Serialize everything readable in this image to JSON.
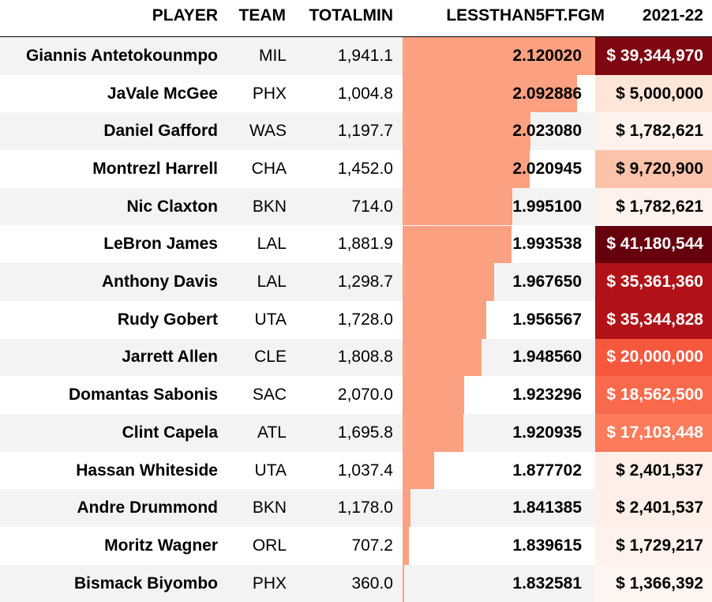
{
  "headers": {
    "player": "PLAYER",
    "team": "TEAM",
    "totalmin": "TOTALMIN",
    "fgm": "LESSTHAN5FT.FGM",
    "salary": "2021-22"
  },
  "chart_data": {
    "type": "table",
    "columns": [
      "PLAYER",
      "TEAM",
      "TOTALMIN",
      "LESSTHAN5FT.FGM",
      "2021-22"
    ],
    "bar_column": "LESSTHAN5FT.FGM",
    "bar_color": "#fca082",
    "salary_colormap": "Reds",
    "rows": [
      {
        "player": "Giannis Antetokounmpo",
        "team": "MIL",
        "totalmin": "1,941.1",
        "fgm": "2.120020",
        "salary": "$ 39,344,970",
        "salary_bg": "#7f0712",
        "salary_fg": "#ffffff"
      },
      {
        "player": "JaVale McGee",
        "team": "PHX",
        "totalmin": "1,004.8",
        "fgm": "2.092886",
        "salary": "$ 5,000,000",
        "salary_bg": "#fee5d9",
        "salary_fg": "#000000"
      },
      {
        "player": "Daniel Gafford",
        "team": "WAS",
        "totalmin": "1,197.7",
        "fgm": "2.023080",
        "salary": "$ 1,782,621",
        "salary_bg": "#fff2ec",
        "salary_fg": "#000000"
      },
      {
        "player": "Montrezl Harrell",
        "team": "CHA",
        "totalmin": "1,452.0",
        "fgm": "2.020945",
        "salary": "$ 9,720,900",
        "salary_bg": "#fcc3ab",
        "salary_fg": "#000000"
      },
      {
        "player": "Nic Claxton",
        "team": "BKN",
        "totalmin": "714.0",
        "fgm": "1.995100",
        "salary": "$ 1,782,621",
        "salary_bg": "#fff2ec",
        "salary_fg": "#000000"
      },
      {
        "player": "LeBron James",
        "team": "LAL",
        "totalmin": "1,881.9",
        "fgm": "1.993538",
        "salary": "$ 41,180,544",
        "salary_bg": "#67000d",
        "salary_fg": "#ffffff"
      },
      {
        "player": "Anthony Davis",
        "team": "LAL",
        "totalmin": "1,298.7",
        "fgm": "1.967650",
        "salary": "$ 35,361,360",
        "salary_bg": "#b01218",
        "salary_fg": "#ffffff"
      },
      {
        "player": "Rudy Gobert",
        "team": "UTA",
        "totalmin": "1,728.0",
        "fgm": "1.956567",
        "salary": "$ 35,344,828",
        "salary_bg": "#b01218",
        "salary_fg": "#ffffff"
      },
      {
        "player": "Jarrett Allen",
        "team": "CLE",
        "totalmin": "1,808.8",
        "fgm": "1.948560",
        "salary": "$ 20,000,000",
        "salary_bg": "#f6583e",
        "salary_fg": "#ffffff"
      },
      {
        "player": "Domantas Sabonis",
        "team": "SAC",
        "totalmin": "2,070.0",
        "fgm": "1.923296",
        "salary": "$ 18,562,500",
        "salary_bg": "#f9694c",
        "salary_fg": "#ffffff"
      },
      {
        "player": "Clint Capela",
        "team": "ATL",
        "totalmin": "1,695.8",
        "fgm": "1.920935",
        "salary": "$ 17,103,448",
        "salary_bg": "#fb7b5b",
        "salary_fg": "#ffffff"
      },
      {
        "player": "Hassan Whiteside",
        "team": "UTA",
        "totalmin": "1,037.4",
        "fgm": "1.877702",
        "salary": "$ 2,401,537",
        "salary_bg": "#ffefe8",
        "salary_fg": "#000000"
      },
      {
        "player": "Andre Drummond",
        "team": "BKN",
        "totalmin": "1,178.0",
        "fgm": "1.841385",
        "salary": "$ 2,401,537",
        "salary_bg": "#ffefe8",
        "salary_fg": "#000000"
      },
      {
        "player": "Moritz Wagner",
        "team": "ORL",
        "totalmin": "707.2",
        "fgm": "1.839615",
        "salary": "$ 1,729,217",
        "salary_bg": "#fff2ed",
        "salary_fg": "#000000"
      },
      {
        "player": "Bismack Biyombo",
        "team": "PHX",
        "totalmin": "360.0",
        "fgm": "1.832581",
        "salary": "$ 1,366,392",
        "salary_bg": "#fff5f0",
        "salary_fg": "#000000"
      }
    ]
  }
}
